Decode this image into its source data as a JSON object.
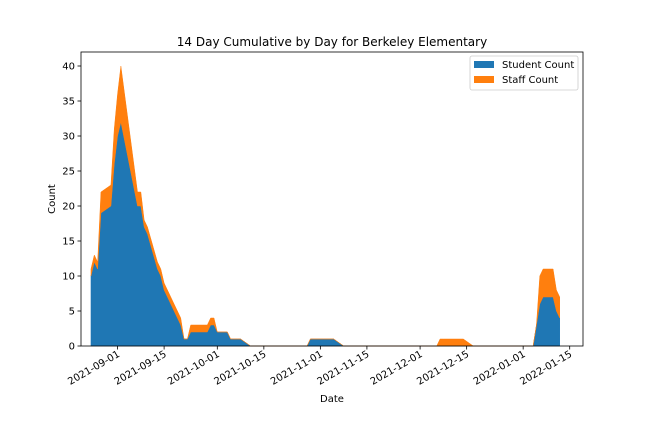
{
  "chart_data": {
    "type": "area",
    "stacked": true,
    "title": "14 Day Cumulative by Day for Berkeley Elementary",
    "xlabel": "Date",
    "ylabel": "Count",
    "xlim": [
      "2021-08-21",
      "2022-01-19"
    ],
    "ylim": [
      0,
      42
    ],
    "yticks": [
      0,
      5,
      10,
      15,
      20,
      25,
      30,
      35,
      40
    ],
    "xticks": [
      "2021-09-01",
      "2021-09-15",
      "2021-10-01",
      "2021-10-15",
      "2021-11-01",
      "2021-11-15",
      "2021-12-01",
      "2021-12-15",
      "2022-01-01",
      "2022-01-15"
    ],
    "grid": false,
    "legend": "top-right",
    "colors": {
      "Student Count": "#1f77b4",
      "Staff Count": "#ff7f0e"
    },
    "x": [
      "2021-08-24",
      "2021-08-25",
      "2021-08-26",
      "2021-08-27",
      "2021-08-30",
      "2021-08-31",
      "2021-09-01",
      "2021-09-02",
      "2021-09-07",
      "2021-09-08",
      "2021-09-09",
      "2021-09-10",
      "2021-09-13",
      "2021-09-14",
      "2021-09-15",
      "2021-09-16",
      "2021-09-17",
      "2021-09-20",
      "2021-09-21",
      "2021-09-22",
      "2021-09-23",
      "2021-09-24",
      "2021-09-27",
      "2021-09-28",
      "2021-09-29",
      "2021-09-30",
      "2021-10-01",
      "2021-10-04",
      "2021-10-05",
      "2021-10-06",
      "2021-10-07",
      "2021-10-08",
      "2021-10-11",
      "2021-10-12",
      "2021-10-13",
      "2021-10-14",
      "2021-10-15",
      "2021-10-18",
      "2021-10-27",
      "2021-10-28",
      "2021-10-29",
      "2021-11-01",
      "2021-11-02",
      "2021-11-05",
      "2021-11-08",
      "2021-11-09",
      "2021-12-06",
      "2021-12-07",
      "2021-12-08",
      "2021-12-13",
      "2021-12-14",
      "2021-12-17",
      "2022-01-03",
      "2022-01-04",
      "2022-01-05",
      "2022-01-06",
      "2022-01-07",
      "2022-01-10",
      "2022-01-11",
      "2022-01-12"
    ],
    "series": [
      {
        "name": "Student Count",
        "values": [
          10,
          12,
          11,
          19,
          20,
          26,
          30,
          32,
          20,
          20,
          17,
          16,
          11,
          10,
          8,
          7,
          6,
          3,
          1,
          1,
          2,
          2,
          2,
          2,
          3,
          3,
          2,
          2,
          1,
          1,
          1,
          1,
          0,
          0,
          0,
          0,
          0,
          0,
          0,
          0,
          1,
          1,
          1,
          1,
          0,
          0,
          0,
          0,
          0,
          0,
          0,
          0,
          0,
          0,
          3,
          6,
          7,
          7,
          5,
          4
        ]
      },
      {
        "name": "Staff Count",
        "values": [
          1,
          1,
          1,
          3,
          3,
          5,
          6,
          8,
          2,
          2,
          1,
          1,
          1,
          1,
          1,
          1,
          1,
          1,
          0,
          0,
          1,
          1,
          1,
          1,
          1,
          1,
          0,
          0,
          0,
          0,
          0,
          0,
          0,
          0,
          0,
          0,
          0,
          0,
          0,
          0,
          0,
          0,
          0,
          0,
          0,
          0,
          0,
          1,
          1,
          1,
          1,
          0,
          0,
          0,
          0,
          4,
          4,
          4,
          3,
          3
        ]
      }
    ]
  }
}
